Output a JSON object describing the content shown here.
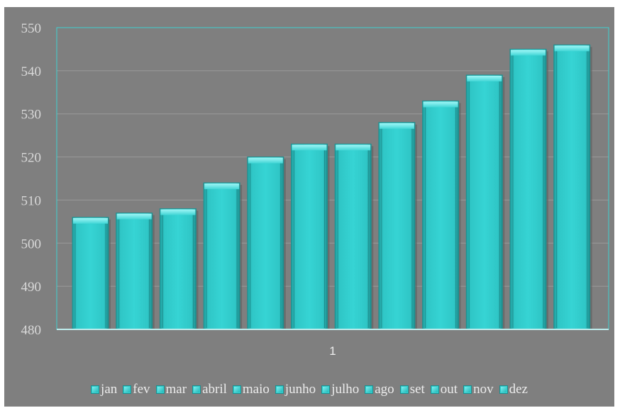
{
  "chart_data": {
    "type": "bar",
    "title": "",
    "xlabel": "",
    "ylabel": "",
    "categories": [
      "1"
    ],
    "series": [
      {
        "name": "jan",
        "values": [
          506
        ]
      },
      {
        "name": "fev",
        "values": [
          507
        ]
      },
      {
        "name": "mar",
        "values": [
          508
        ]
      },
      {
        "name": "abril",
        "values": [
          514
        ]
      },
      {
        "name": "maio",
        "values": [
          520
        ]
      },
      {
        "name": "junho",
        "values": [
          523
        ]
      },
      {
        "name": "julho",
        "values": [
          523
        ]
      },
      {
        "name": "ago",
        "values": [
          528
        ]
      },
      {
        "name": "set",
        "values": [
          533
        ]
      },
      {
        "name": "out",
        "values": [
          539
        ]
      },
      {
        "name": "nov",
        "values": [
          545
        ]
      },
      {
        "name": "dez",
        "values": [
          546
        ]
      }
    ],
    "ylim": [
      480,
      550
    ],
    "yticks": [
      "480",
      "490",
      "500",
      "510",
      "520",
      "530",
      "540",
      "550"
    ],
    "grid": true,
    "legend_position": "bottom",
    "colors": {
      "background": "#7f7f7f",
      "bar": "#33d0d0",
      "bar_top": "#7ef0f0",
      "bar_edge": "#1f8f8f",
      "gridline": "#9a9a9a",
      "plot_border": "#3fd0d0"
    }
  }
}
